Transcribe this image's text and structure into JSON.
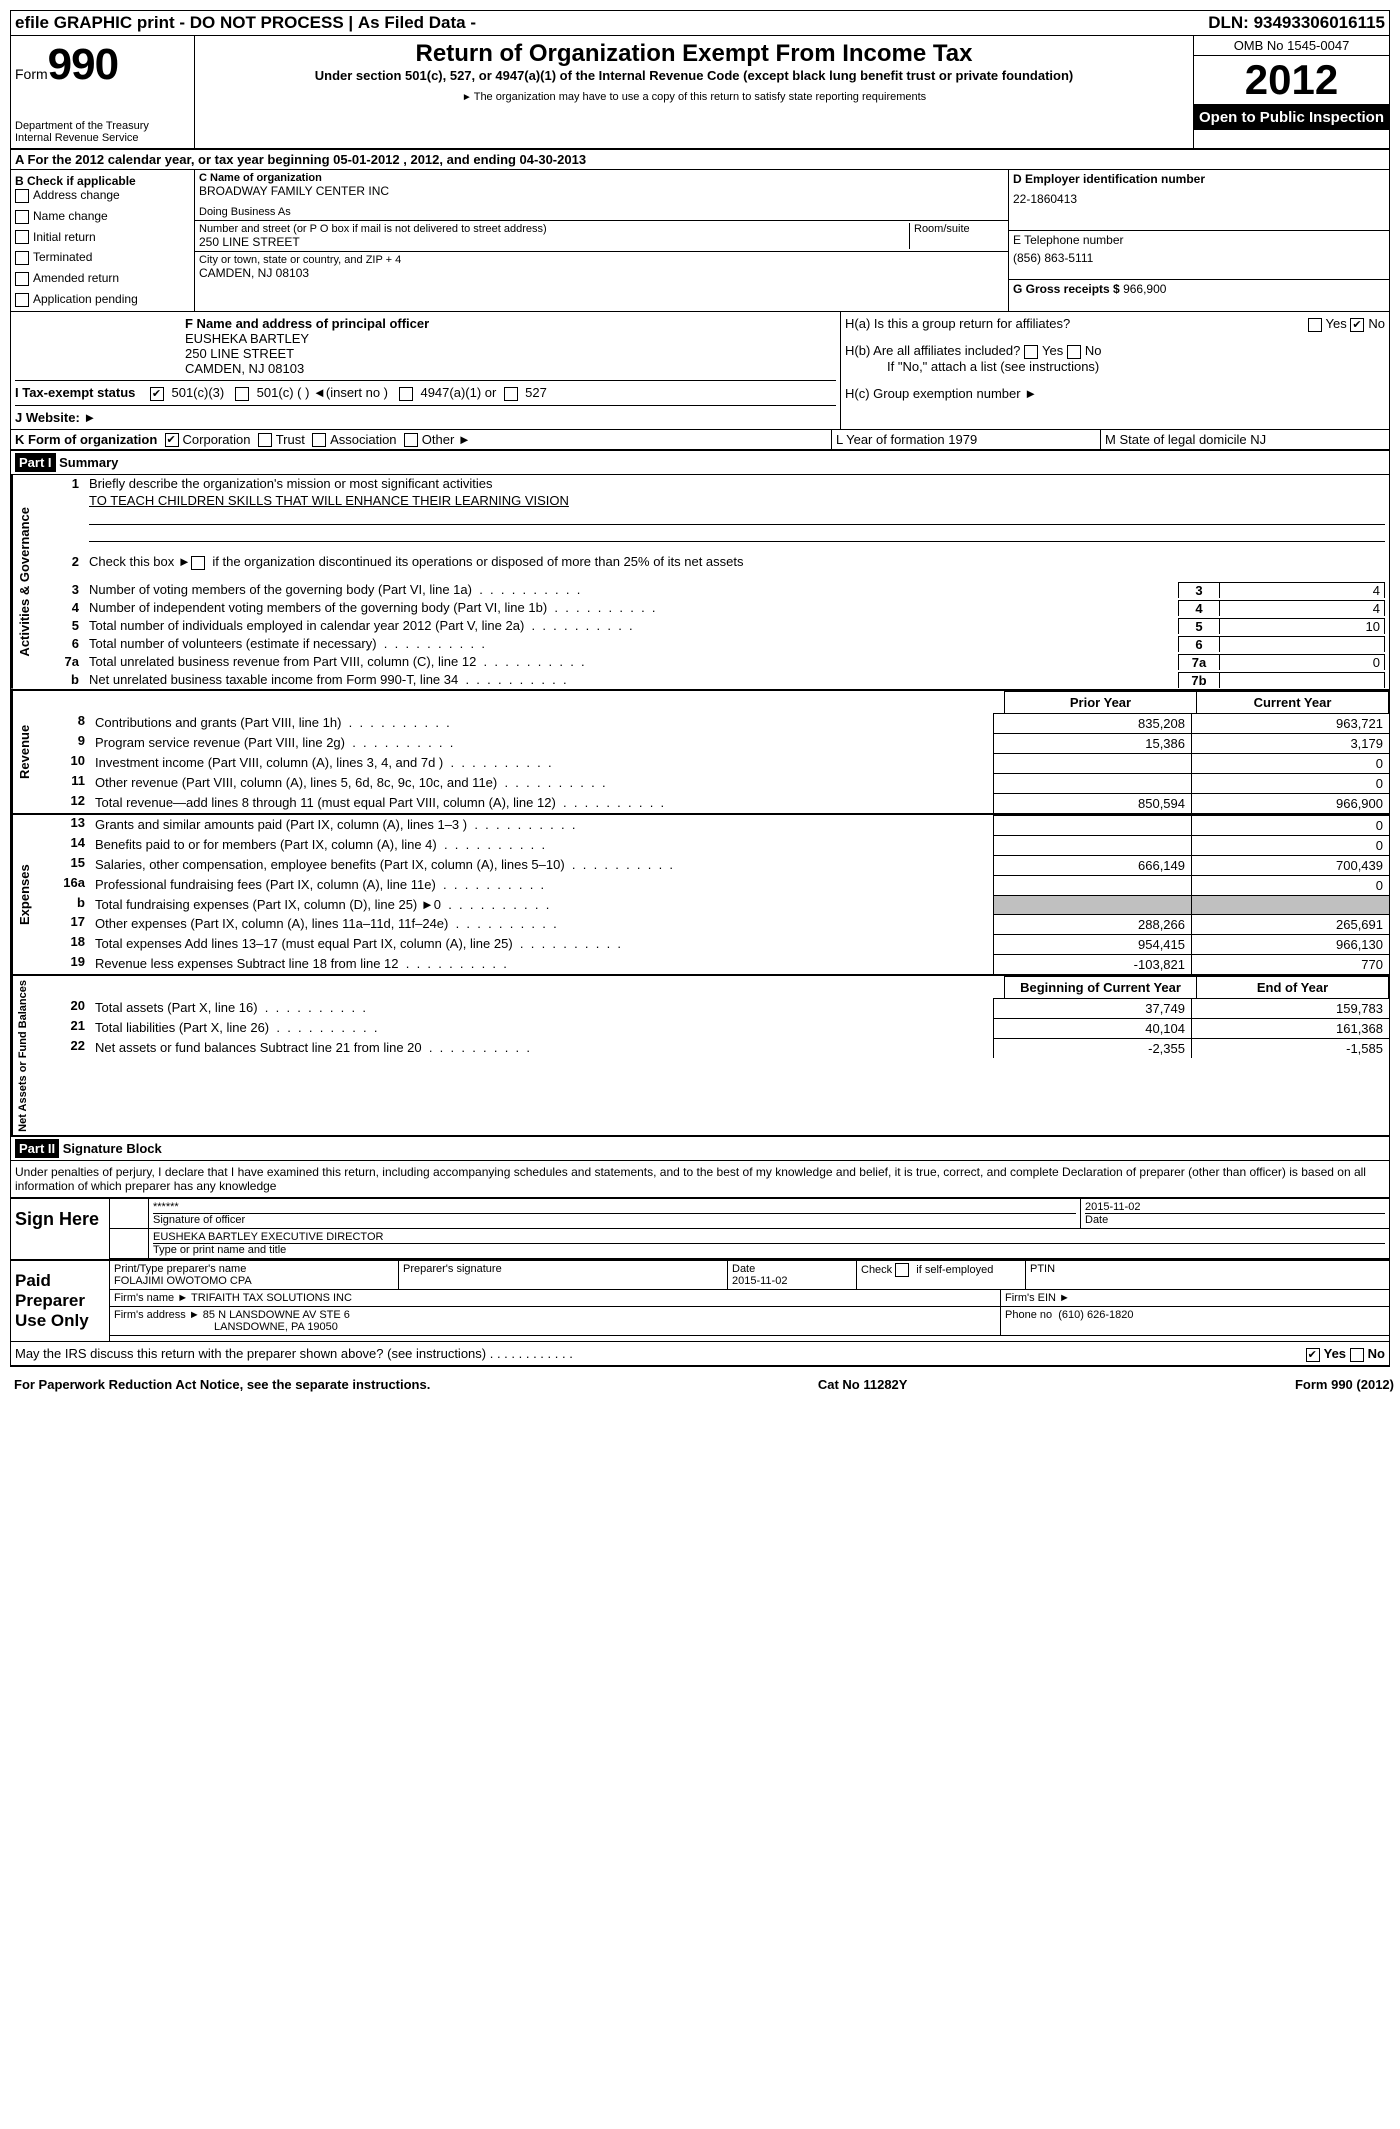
{
  "topbar": {
    "efile": "efile GRAPHIC print - DO NOT PROCESS",
    "asfiled": "As Filed Data - ",
    "dln_label": "DLN:",
    "dln": "93493306016115"
  },
  "header": {
    "form_word": "Form",
    "form_num": "990",
    "dept": "Department of the Treasury",
    "irs": "Internal Revenue Service",
    "title": "Return of Organization Exempt From Income Tax",
    "sub": "Under section 501(c), 527, or 4947(a)(1) of the Internal Revenue Code (except black lung benefit trust or private foundation)",
    "note": "The organization may have to use a copy of this return to satisfy state reporting requirements",
    "omb": "OMB No 1545-0047",
    "year": "2012",
    "open": "Open to Public Inspection"
  },
  "sectionA": "A  For the 2012 calendar year, or tax year beginning 05-01-2012     , 2012, and ending 04-30-2013",
  "B": {
    "label": "B Check if applicable",
    "opts": [
      "Address change",
      "Name change",
      "Initial return",
      "Terminated",
      "Amended return",
      "Application pending"
    ]
  },
  "C": {
    "name_label": "C Name of organization",
    "name": "BROADWAY FAMILY CENTER INC",
    "dba_label": "Doing Business As",
    "addr_label": "Number and street (or P O  box if mail is not delivered to street address)",
    "room_label": "Room/suite",
    "addr": "250 LINE STREET",
    "city_label": "City or town, state or country, and ZIP + 4",
    "city": "CAMDEN, NJ  08103"
  },
  "D": {
    "label": "D Employer identification number",
    "val": "22-1860413"
  },
  "E": {
    "label": "E Telephone number",
    "val": "(856) 863-5111"
  },
  "G": {
    "label": "G Gross receipts $",
    "val": "966,900"
  },
  "F": {
    "label": "F  Name and address of principal officer",
    "name": "EUSHEKA BARTLEY",
    "addr1": "250 LINE STREET",
    "addr2": "CAMDEN, NJ  08103"
  },
  "H": {
    "a": "H(a)  Is this a group return for affiliates?",
    "b": "H(b)  Are all affiliates included?",
    "b_note": "If \"No,\" attach a list  (see instructions)",
    "c": "H(c)   Group exemption number"
  },
  "I": "I  Tax-exempt status",
  "J": "J  Website:",
  "K": {
    "left": "K Form of organization",
    "opts": [
      "Corporation",
      "Trust",
      "Association",
      "Other"
    ],
    "L": "L Year of formation  1979",
    "M": "M State of legal domicile  NJ"
  },
  "partI": {
    "tag": "Part I",
    "title": "Summary"
  },
  "summary1": {
    "l1": "Briefly describe the organization's mission or most significant activities",
    "mission": "TO TEACH CHILDREN SKILLS THAT WILL ENHANCE THEIR LEARNING VISION",
    "l2": "Check this box ►      if the organization discontinued its operations or disposed of more than 25% of its net assets",
    "rows": [
      {
        "n": "3",
        "d": "Number of voting members of the governing body (Part VI, line 1a)",
        "b": "3",
        "v": "4"
      },
      {
        "n": "4",
        "d": "Number of independent voting members of the governing body (Part VI, line 1b)",
        "b": "4",
        "v": "4"
      },
      {
        "n": "5",
        "d": "Total number of individuals employed in calendar year 2012 (Part V, line 2a)",
        "b": "5",
        "v": "10"
      },
      {
        "n": "6",
        "d": "Total number of volunteers (estimate if necessary)",
        "b": "6",
        "v": ""
      },
      {
        "n": "7a",
        "d": "Total unrelated business revenue from Part VIII, column (C), line 12",
        "b": "7a",
        "v": "0"
      },
      {
        "n": "b",
        "d": "Net unrelated business taxable income from Form 990-T, line 34",
        "b": "7b",
        "v": ""
      }
    ]
  },
  "fin_headers": {
    "prior": "Prior Year",
    "current": "Current Year"
  },
  "revenue": [
    {
      "n": "8",
      "d": "Contributions and grants (Part VIII, line 1h)",
      "p": "835,208",
      "c": "963,721"
    },
    {
      "n": "9",
      "d": "Program service revenue (Part VIII, line 2g)",
      "p": "15,386",
      "c": "3,179"
    },
    {
      "n": "10",
      "d": "Investment income (Part VIII, column (A), lines 3, 4, and 7d )",
      "p": "",
      "c": "0"
    },
    {
      "n": "11",
      "d": "Other revenue (Part VIII, column (A), lines 5, 6d, 8c, 9c, 10c, and 11e)",
      "p": "",
      "c": "0"
    },
    {
      "n": "12",
      "d": "Total revenue—add lines 8 through 11 (must equal Part VIII, column (A), line 12)",
      "p": "850,594",
      "c": "966,900"
    }
  ],
  "expenses": [
    {
      "n": "13",
      "d": "Grants and similar amounts paid (Part IX, column (A), lines 1–3 )",
      "p": "",
      "c": "0"
    },
    {
      "n": "14",
      "d": "Benefits paid to or for members (Part IX, column (A), line 4)",
      "p": "",
      "c": "0"
    },
    {
      "n": "15",
      "d": "Salaries, other compensation, employee benefits (Part IX, column (A), lines 5–10)",
      "p": "666,149",
      "c": "700,439"
    },
    {
      "n": "16a",
      "d": "Professional fundraising fees (Part IX, column (A), line 11e)",
      "p": "",
      "c": "0"
    },
    {
      "n": "b",
      "d": "Total fundraising expenses (Part IX, column (D), line 25) ►0",
      "p": "grey",
      "c": "grey"
    },
    {
      "n": "17",
      "d": "Other expenses (Part IX, column (A), lines 11a–11d, 11f–24e)",
      "p": "288,266",
      "c": "265,691"
    },
    {
      "n": "18",
      "d": "Total expenses  Add lines 13–17 (must equal Part IX, column (A), line 25)",
      "p": "954,415",
      "c": "966,130"
    },
    {
      "n": "19",
      "d": "Revenue less expenses  Subtract line 18 from line 12",
      "p": "-103,821",
      "c": "770"
    }
  ],
  "na_headers": {
    "begin": "Beginning of Current Year",
    "end": "End of Year"
  },
  "netassets": [
    {
      "n": "20",
      "d": "Total assets (Part X, line 16)",
      "p": "37,749",
      "c": "159,783"
    },
    {
      "n": "21",
      "d": "Total liabilities (Part X, line 26)",
      "p": "40,104",
      "c": "161,368"
    },
    {
      "n": "22",
      "d": "Net assets or fund balances  Subtract line 21 from line 20",
      "p": "-2,355",
      "c": "-1,585"
    }
  ],
  "partII": {
    "tag": "Part II",
    "title": "Signature Block"
  },
  "sig": {
    "decl": "Under penalties of perjury, I declare that I have examined this return, including accompanying schedules and statements, and to the best of my knowledge and belief, it is true, correct, and complete  Declaration of preparer (other than officer) is based on all information of which preparer has any knowledge",
    "sign_here": "Sign Here",
    "stars": "******",
    "sig_officer": "Signature of officer",
    "date_label": "Date",
    "date": "2015-11-02",
    "officer": "EUSHEKA BARTLEY EXECUTIVE DIRECTOR",
    "type_label": "Type or print name and title",
    "paid": "Paid Preparer Use Only",
    "prep_name_label": "Print/Type preparer's name",
    "prep_name": "FOLAJIMI OWOTOMO CPA",
    "prep_sig_label": "Preparer's signature",
    "prep_date": "2015-11-02",
    "self_emp": "Check        if self-employed",
    "ptin": "PTIN",
    "firm_name_label": "Firm's name  ►",
    "firm_name": "TRIFAITH TAX SOLUTIONS INC",
    "firm_ein": "Firm's EIN ►",
    "firm_addr_label": "Firm's address ►",
    "firm_addr1": "85 N LANSDOWNE AV STE 6",
    "firm_addr2": "LANSDOWNE, PA  19050",
    "phone_label": "Phone no",
    "phone": "(610) 626-1820",
    "may_irs": "May the IRS discuss this return with the preparer shown above? (see instructions)"
  },
  "footer": {
    "left": "For Paperwork Reduction Act Notice, see the separate instructions.",
    "mid": "Cat No 11282Y",
    "right": "Form 990 (2012)"
  },
  "vtabs": {
    "ag": "Activities & Governance",
    "rev": "Revenue",
    "exp": "Expenses",
    "na": "Net Assets or Fund Balances"
  }
}
